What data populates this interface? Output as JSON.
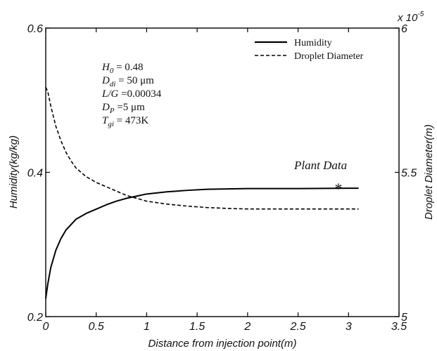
{
  "chart_data": {
    "type": "line",
    "xlabel": "Distance from injection point(m)",
    "ylabel": "Humidity(kg/kg)",
    "y2label": "Droplet Diameter(m)",
    "y2_multiplier": "x 10",
    "y2_exponent": "-5",
    "xlim": [
      0,
      3.5
    ],
    "ylim": [
      0.2,
      0.6
    ],
    "y2lim": [
      5,
      6
    ],
    "x_ticks": [
      "0",
      "0.5",
      "1",
      "1.5",
      "2",
      "2.5",
      "3",
      "3.5"
    ],
    "y_ticks": [
      "0.2",
      "0.4",
      "0.6"
    ],
    "y2_ticks": [
      "5",
      "5.5",
      "6"
    ],
    "grid": false,
    "legend": {
      "position": "top-right",
      "entries": [
        "Humidity",
        "Droplet Diameter"
      ]
    },
    "series": [
      {
        "name": "Humidity",
        "axis": "left",
        "style": "solid",
        "x": [
          0.0,
          0.02,
          0.05,
          0.1,
          0.15,
          0.2,
          0.3,
          0.4,
          0.5,
          0.6,
          0.7,
          0.8,
          0.9,
          1.0,
          1.2,
          1.4,
          1.6,
          1.8,
          2.0,
          2.5,
          3.0,
          3.1
        ],
        "y": [
          0.225,
          0.245,
          0.268,
          0.292,
          0.308,
          0.32,
          0.335,
          0.343,
          0.349,
          0.355,
          0.36,
          0.364,
          0.367,
          0.37,
          0.373,
          0.375,
          0.3765,
          0.377,
          0.3775,
          0.3775,
          0.378,
          0.378
        ]
      },
      {
        "name": "Droplet Diameter",
        "axis": "right",
        "style": "dashed",
        "x": [
          0.0,
          0.02,
          0.05,
          0.1,
          0.15,
          0.2,
          0.25,
          0.3,
          0.4,
          0.5,
          0.6,
          0.7,
          0.8,
          0.9,
          1.0,
          1.2,
          1.4,
          1.6,
          1.8,
          2.0,
          2.5,
          3.0,
          3.1
        ],
        "y": [
          5.795,
          5.78,
          5.73,
          5.66,
          5.61,
          5.57,
          5.54,
          5.515,
          5.485,
          5.465,
          5.45,
          5.435,
          5.42,
          5.41,
          5.4,
          5.39,
          5.383,
          5.378,
          5.375,
          5.373,
          5.373,
          5.373,
          5.373
        ]
      }
    ],
    "annotations": {
      "params": [
        {
          "sym": "H",
          "sub": "0",
          "val": " = 0.48"
        },
        {
          "sym": "D",
          "sub": "di",
          "val": " = 50 μm"
        },
        {
          "sym": "L/G",
          "sub": "",
          "val": " =0.00034"
        },
        {
          "sym": "D",
          "sub": "P",
          "val": " =5 μm"
        },
        {
          "sym": "T",
          "sub": "gi",
          "val": " = 473K"
        }
      ],
      "plant_label": "Plant Data",
      "plant_marker": "*",
      "plant_point": {
        "x": 2.9,
        "y": 0.38
      }
    }
  }
}
